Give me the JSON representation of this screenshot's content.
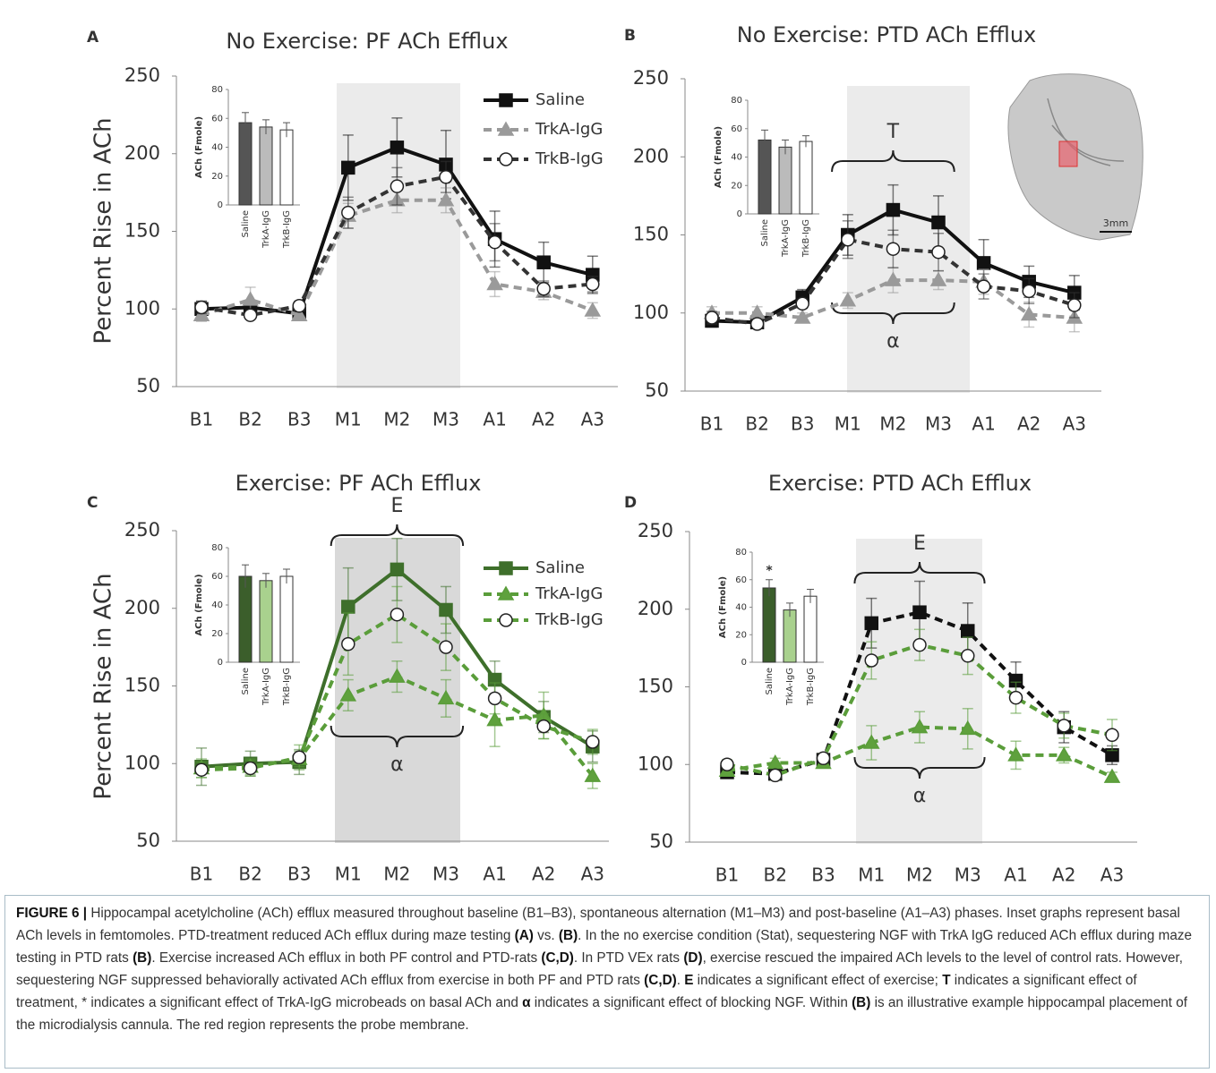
{
  "chart_data": [
    {
      "type": "line",
      "label": "A",
      "title": "No Exercise: PF ACh Efflux",
      "ylabel": "Percent Rise in ACh",
      "categories": [
        "B1",
        "B2",
        "B3",
        "M1",
        "M2",
        "M3",
        "A1",
        "A2",
        "A3"
      ],
      "ylim": [
        50,
        250
      ],
      "yticks": [
        50,
        100,
        150,
        200,
        250
      ],
      "shade_color": "#ebebeb",
      "legend": "upper right",
      "series": [
        {
          "name": "Saline",
          "color": "#111111",
          "dash": false,
          "marker": "square",
          "marker_fill": "#111111",
          "values": [
            100,
            101,
            97,
            191,
            204,
            193,
            145,
            130,
            122
          ],
          "errors": [
            5,
            4,
            3,
            21,
            19,
            22,
            18,
            13,
            12
          ]
        },
        {
          "name": "TrkA-IgG",
          "color": "#9a9a9a",
          "dash": true,
          "marker": "triangle",
          "marker_fill": "#9a9a9a",
          "values": [
            96,
            106,
            96,
            160,
            170,
            170,
            116,
            111,
            99
          ],
          "errors": [
            4,
            8,
            3,
            8,
            8,
            8,
            8,
            5,
            5
          ]
        },
        {
          "name": "TrkB-IgG",
          "color": "#333333",
          "dash": true,
          "marker": "circle",
          "marker_fill": "#ffffff",
          "values": [
            101,
            96,
            102,
            162,
            179,
            185,
            143,
            113,
            116
          ],
          "errors": [
            4,
            2,
            3,
            10,
            12,
            10,
            12,
            5,
            5
          ]
        }
      ],
      "inset": {
        "type": "bar",
        "ylabel": "ACh (Fmole)",
        "categories": [
          "Saline",
          "TrkA-IgG",
          "TrkB-IgG"
        ],
        "values": [
          57,
          54,
          52
        ],
        "errors": [
          7,
          5,
          5
        ],
        "colors": [
          "#555555",
          "#bbbbbb",
          "#ffffff"
        ],
        "ylim": [
          0,
          80
        ],
        "yticks": [
          0,
          20,
          40,
          60,
          80
        ]
      }
    },
    {
      "type": "line",
      "label": "B",
      "title": "No Exercise: PTD ACh Efflux",
      "categories": [
        "B1",
        "B2",
        "B3",
        "M1",
        "M2",
        "M3",
        "A1",
        "A2",
        "A3"
      ],
      "ylim": [
        50,
        250
      ],
      "yticks": [
        50,
        100,
        150,
        200,
        250
      ],
      "shade_color": "#ebebeb",
      "series": [
        {
          "color": "#111111",
          "dash": false,
          "marker": "square",
          "marker_fill": "#111111",
          "values": [
            95,
            94,
            110,
            150,
            166,
            158,
            132,
            120,
            113
          ],
          "errors": [
            4,
            3,
            5,
            13,
            16,
            17,
            15,
            10,
            11
          ]
        },
        {
          "color": "#9a9a9a",
          "dash": true,
          "marker": "triangle",
          "marker_fill": "#9a9a9a",
          "values": [
            100,
            100,
            97,
            108,
            121,
            121,
            120,
            99,
            97
          ],
          "errors": [
            4,
            4,
            3,
            5,
            8,
            6,
            8,
            8,
            9
          ]
        },
        {
          "color": "#333333",
          "dash": true,
          "marker": "circle",
          "marker_fill": "#ffffff",
          "values": [
            97,
            93,
            106,
            147,
            141,
            139,
            117,
            114,
            105
          ],
          "errors": [
            4,
            3,
            3,
            12,
            12,
            12,
            8,
            8,
            8
          ]
        }
      ],
      "annotations": [
        {
          "text": "T",
          "position": "above"
        },
        {
          "text": "α",
          "position": "below"
        }
      ],
      "image_label": "3mm",
      "inset": {
        "type": "bar",
        "ylabel": "ACh (Fmole)",
        "categories": [
          "Saline",
          "TrkA-IgG",
          "TrkB-IgG"
        ],
        "values": [
          52,
          47,
          51
        ],
        "errors": [
          7,
          5,
          4
        ],
        "colors": [
          "#555555",
          "#bbbbbb",
          "#ffffff"
        ],
        "ylim": [
          0,
          80
        ],
        "yticks": [
          0,
          20,
          40,
          60,
          80
        ]
      }
    },
    {
      "type": "line",
      "label": "C",
      "title": "Exercise: PF ACh Efflux",
      "ylabel": "Percent Rise in ACh",
      "categories": [
        "B1",
        "B2",
        "B3",
        "M1",
        "M2",
        "M3",
        "A1",
        "A2",
        "A3"
      ],
      "ylim": [
        50,
        250
      ],
      "yticks": [
        50,
        100,
        150,
        200,
        250
      ],
      "shade_color": "#d9d9d9",
      "legend": "upper right",
      "series": [
        {
          "name": "Saline",
          "color": "#3e6f2b",
          "dash": false,
          "marker": "square",
          "marker_fill": "#3e6f2b",
          "values": [
            98,
            100,
            101,
            201,
            225,
            199,
            154,
            130,
            111
          ],
          "errors": [
            12,
            8,
            8,
            25,
            20,
            15,
            12,
            10,
            10
          ]
        },
        {
          "name": "TrkA-IgG",
          "color": "#5a9d3a",
          "dash": true,
          "marker": "triangle",
          "marker_fill": "#5fa13d",
          "values": [
            97,
            98,
            103,
            144,
            156,
            142,
            128,
            131,
            92
          ],
          "errors": [
            6,
            5,
            5,
            10,
            10,
            12,
            17,
            15,
            8
          ]
        },
        {
          "name": "TrkB-IgG",
          "color": "#5a9d3a",
          "dash": true,
          "marker": "circle",
          "marker_fill": "#ffffff",
          "values": [
            96,
            97,
            104,
            177,
            196,
            175,
            142,
            124,
            114
          ],
          "errors": [
            5,
            5,
            8,
            20,
            18,
            15,
            10,
            8,
            8
          ]
        }
      ],
      "annotations": [
        {
          "text": "E",
          "position": "above"
        },
        {
          "text": "α",
          "position": "below"
        }
      ],
      "inset": {
        "type": "bar",
        "ylabel": "ACh (Fmole)",
        "categories": [
          "Saline",
          "TrkA-IgG",
          "TrkB-IgG"
        ],
        "values": [
          60,
          57,
          60
        ],
        "errors": [
          8,
          5,
          5
        ],
        "colors": [
          "#3b5e2b",
          "#a9d18e",
          "#ffffff"
        ],
        "ylim": [
          0,
          80
        ],
        "yticks": [
          0,
          20,
          40,
          60,
          80
        ]
      }
    },
    {
      "type": "line",
      "label": "D",
      "title": "Exercise: PTD ACh Efflux",
      "categories": [
        "B1",
        "B2",
        "B3",
        "M1",
        "M2",
        "M3",
        "A1",
        "A2",
        "A3"
      ],
      "ylim": [
        50,
        250
      ],
      "yticks": [
        50,
        100,
        150,
        200,
        250
      ],
      "shade_color": "#ebebeb",
      "series": [
        {
          "color": "#111111",
          "dash": true,
          "marker": "square",
          "marker_fill": "#111111",
          "values": [
            95,
            94,
            103,
            191,
            198,
            186,
            154,
            124,
            106
          ],
          "errors": [
            3,
            3,
            4,
            16,
            20,
            18,
            12,
            10,
            6
          ]
        },
        {
          "color": "#5a9d3a",
          "dash": true,
          "marker": "triangle",
          "marker_fill": "#5fa13d",
          "values": [
            96,
            101,
            101,
            114,
            124,
            123,
            106,
            106,
            92
          ],
          "errors": [
            3,
            3,
            3,
            11,
            10,
            13,
            9,
            5,
            3
          ]
        },
        {
          "color": "#5a9d3a",
          "dash": true,
          "marker": "circle",
          "marker_fill": "#ffffff",
          "values": [
            100,
            93,
            104,
            167,
            177,
            170,
            143,
            125,
            119
          ],
          "errors": [
            3,
            3,
            3,
            12,
            10,
            12,
            10,
            8,
            10
          ]
        }
      ],
      "annotations": [
        {
          "text": "E",
          "position": "above"
        },
        {
          "text": "α",
          "position": "below"
        }
      ],
      "inset": {
        "type": "bar",
        "ylabel": "ACh (Fmole)",
        "categories": [
          "Saline",
          "TrkA-IgG",
          "TrkB-IgG"
        ],
        "values": [
          54,
          38,
          48
        ],
        "errors": [
          6,
          5,
          5
        ],
        "colors": [
          "#3b5e2b",
          "#a9d18e",
          "#ffffff"
        ],
        "ylim": [
          0,
          80
        ],
        "yticks": [
          0,
          20,
          40,
          60,
          80
        ],
        "annotation": {
          "text": "*",
          "category": "Saline"
        }
      }
    }
  ],
  "caption": [
    {
      "text": "FIGURE 6 |",
      "bold": true
    },
    {
      "text": " Hippocampal acetylcholine (ACh) efflux measured throughout baseline (B1–B3), spontaneous alternation (M1–M3) and post-baseline (A1–A3) phases. Inset graphs represent basal ACh levels in femtomoles. PTD-treatment reduced ACh efflux during maze testing ",
      "bold": false
    },
    {
      "text": "(A)",
      "bold": true
    },
    {
      "text": " vs. ",
      "bold": false
    },
    {
      "text": "(B)",
      "bold": true
    },
    {
      "text": ". In the no exercise condition (Stat), sequestering NGF with TrkA IgG reduced ACh efflux during maze testing in PTD rats ",
      "bold": false
    },
    {
      "text": "(B)",
      "bold": true
    },
    {
      "text": ". Exercise increased ACh efflux in both PF control and PTD-rats ",
      "bold": false
    },
    {
      "text": "(C,D)",
      "bold": true
    },
    {
      "text": ". In PTD VEx rats ",
      "bold": false
    },
    {
      "text": "(D)",
      "bold": true
    },
    {
      "text": ", exercise rescued the impaired ACh levels to the level of control rats. However, sequestering NGF suppressed behaviorally activated ACh efflux from exercise in both PF and PTD rats ",
      "bold": false
    },
    {
      "text": "(C,D)",
      "bold": true
    },
    {
      "text": ". ",
      "bold": false
    },
    {
      "text": "E",
      "bold": true
    },
    {
      "text": " indicates a significant effect of exercise; ",
      "bold": false
    },
    {
      "text": "T",
      "bold": true
    },
    {
      "text": " indicates a significant effect of treatment, * indicates a significant effect of TrkA-IgG microbeads on basal ACh and ",
      "bold": false
    },
    {
      "text": "α",
      "bold": true
    },
    {
      "text": " indicates a significant effect of blocking NGF. Within ",
      "bold": false
    },
    {
      "text": "(B)",
      "bold": true
    },
    {
      "text": " is an illustrative example hippocampal placement of the microdialysis cannula. The red region represents the probe membrane.",
      "bold": false
    }
  ]
}
